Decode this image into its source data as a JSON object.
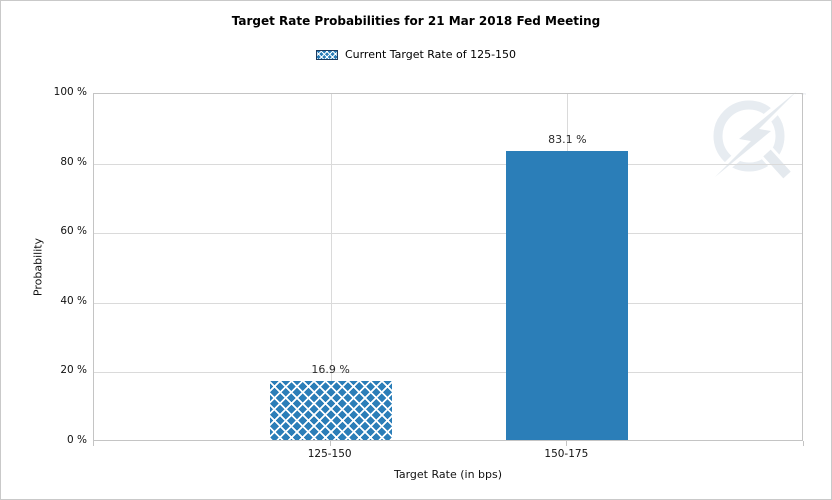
{
  "chart_data": {
    "type": "bar",
    "title": "Target Rate Probabilities for 21 Mar 2018 Fed Meeting",
    "legend_label": "Current Target Rate of 125-150",
    "legend_position": "top",
    "categories": [
      "125-150",
      "150-175"
    ],
    "series": [
      {
        "name": "Current Target Rate of 125-150",
        "values": [
          16.9,
          83.1
        ]
      }
    ],
    "value_labels": [
      "16.9 %",
      "83.1 %"
    ],
    "bar_styles": [
      "crosshatch",
      "solid"
    ],
    "xlabel": "Target Rate (in bps)",
    "ylabel": "Probability",
    "ylim": [
      0,
      100
    ],
    "yticks": [
      0,
      20,
      40,
      60,
      80,
      100
    ],
    "ytick_labels": [
      "0 %",
      "20 %",
      "40 %",
      "60 %",
      "80 %",
      "100 %"
    ],
    "grid": true,
    "colors": {
      "bar": "#2b7eb8",
      "hatch_line": "#ffffff",
      "gridline": "#dadada",
      "axis": "#c4c4c4",
      "title_text": "#000000",
      "value_label_text": "#2b2b2b"
    }
  },
  "watermark": {
    "icon": "lightning-q-logo",
    "trademark": "™",
    "ring_color": "#e7ecf1",
    "bolt_color": "#e4e9ee"
  }
}
